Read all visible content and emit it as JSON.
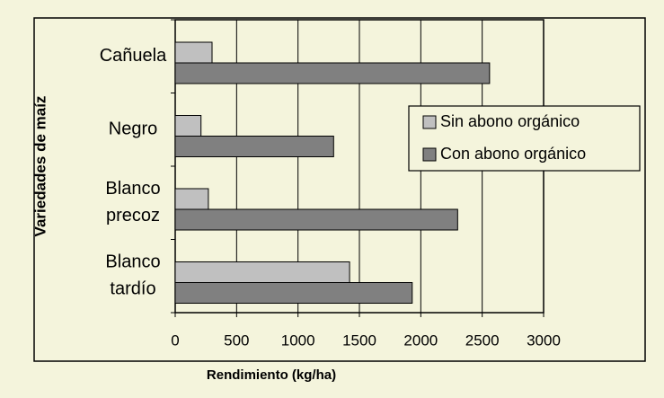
{
  "chart_data": {
    "type": "bar",
    "orientation": "horizontal",
    "categories": [
      "Cañuela",
      "Negro",
      "Blanco precoz",
      "Blanco tardío"
    ],
    "series": [
      {
        "name": "Sin abono orgánico",
        "color": "#c0c0c0",
        "values": [
          300,
          210,
          270,
          1420
        ]
      },
      {
        "name": "Con abono orgánico",
        "color": "#808080",
        "values": [
          2560,
          1290,
          2300,
          1930
        ]
      }
    ],
    "xlabel": "Rendimiento (kg/ha)",
    "ylabel": "Variedades de maíz",
    "xlim": [
      0,
      3000
    ],
    "xticks": [
      0,
      500,
      1000,
      1500,
      2000,
      2500,
      3000
    ],
    "grid": true,
    "legend": "right"
  }
}
